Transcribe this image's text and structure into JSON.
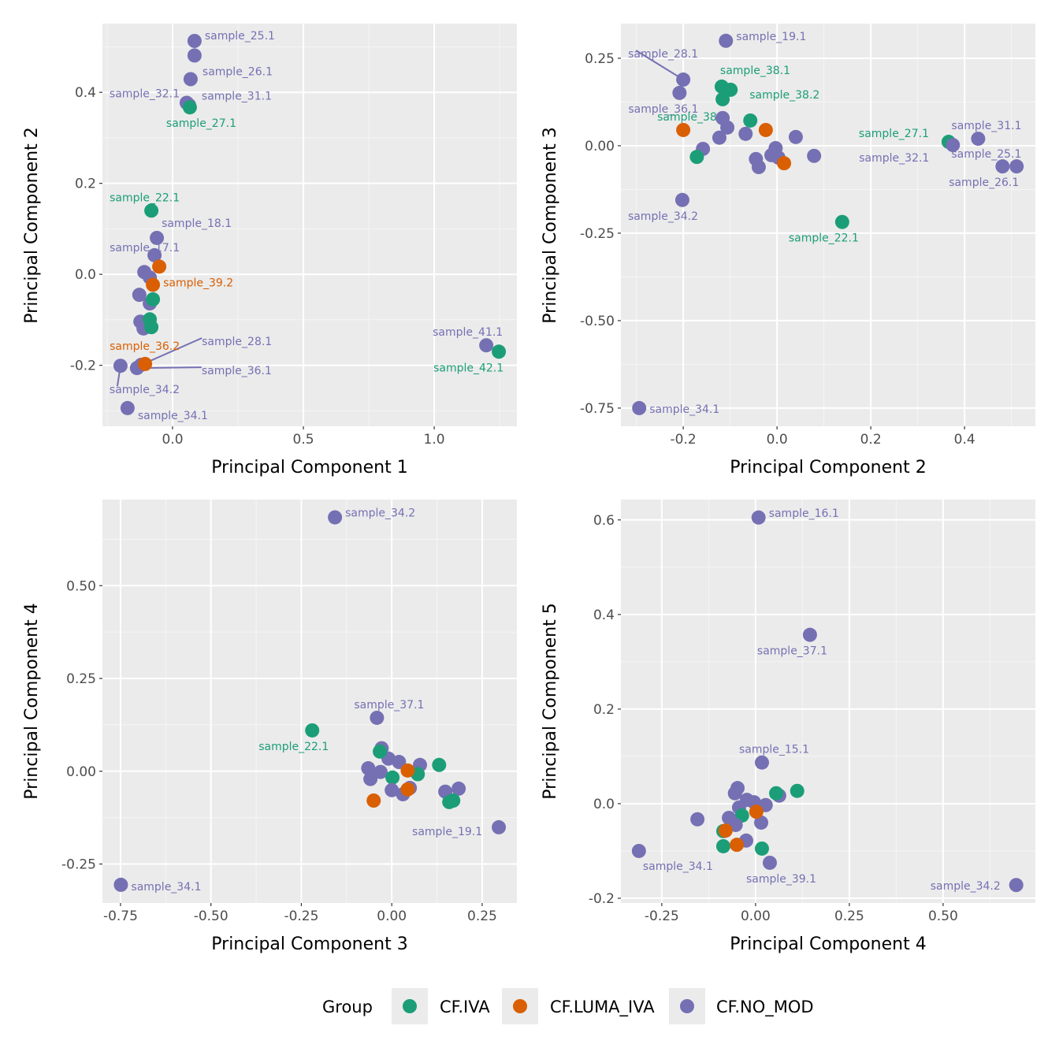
{
  "legend": {
    "title": "Group",
    "items": [
      {
        "label": "CF.IVA",
        "color": "#1B9E77"
      },
      {
        "label": "CF.LUMA_IVA",
        "color": "#D95F02"
      },
      {
        "label": "CF.NO_MOD",
        "color": "#7570B3"
      }
    ],
    "position": "bottom"
  },
  "chart_data": [
    {
      "type": "scatter",
      "xlabel": "Principal Component 1",
      "ylabel": "Principal Component 2",
      "xlim": [
        -0.268,
        1.316
      ],
      "ylim": [
        -0.334,
        0.551
      ],
      "xticks": [
        0,
        0.5,
        1.0
      ],
      "xtick_labels": [
        "0.0",
        "0.5",
        "1.0"
      ],
      "yticks": [
        -0.2,
        0,
        0.2,
        0.4
      ],
      "ytick_labels": [
        "-0.2",
        "0.0",
        "0.2",
        "0.4"
      ],
      "grid": true,
      "points": [
        [
          0.084,
          0.513,
          "CF.NO_MOD",
          "sample_25.1"
        ],
        [
          0.084,
          0.481,
          "CF.NO_MOD",
          ""
        ],
        [
          0.069,
          0.429,
          "CF.NO_MOD",
          "sample_26.1"
        ],
        [
          0.054,
          0.377,
          "CF.NO_MOD",
          "sample_32.1"
        ],
        [
          0.063,
          0.372,
          "CF.NO_MOD",
          "sample_31.1"
        ],
        [
          0.066,
          0.367,
          "CF.IVA",
          "sample_27.1"
        ],
        [
          -0.081,
          0.14,
          "CF.IVA",
          "sample_22.1"
        ],
        [
          -0.06,
          0.08,
          "CF.NO_MOD",
          "sample_18.1"
        ],
        [
          -0.069,
          0.042,
          "CF.NO_MOD",
          "sample_17.1"
        ],
        [
          -0.108,
          0.005,
          "CF.NO_MOD",
          ""
        ],
        [
          -0.087,
          -0.007,
          "CF.NO_MOD",
          ""
        ],
        [
          -0.051,
          0.017,
          "CF.LUMA_IVA",
          ""
        ],
        [
          -0.075,
          -0.023,
          "CF.LUMA_IVA",
          "sample_39.2"
        ],
        [
          -0.127,
          -0.045,
          "CF.NO_MOD",
          ""
        ],
        [
          -0.087,
          -0.064,
          "CF.NO_MOD",
          ""
        ],
        [
          -0.075,
          -0.055,
          "CF.IVA",
          ""
        ],
        [
          -0.123,
          -0.104,
          "CF.NO_MOD",
          ""
        ],
        [
          -0.111,
          -0.119,
          "CF.NO_MOD",
          ""
        ],
        [
          -0.087,
          -0.099,
          "CF.IVA",
          ""
        ],
        [
          -0.081,
          -0.116,
          "CF.IVA",
          ""
        ],
        [
          -0.136,
          -0.206,
          "CF.NO_MOD",
          "sample_36.1"
        ],
        [
          -0.12,
          -0.199,
          "CF.NO_MOD",
          "sample_28.1"
        ],
        [
          -0.105,
          -0.197,
          "CF.LUMA_IVA",
          "sample_36.2"
        ],
        [
          -0.199,
          -0.201,
          "CF.NO_MOD",
          "sample_34.2"
        ],
        [
          -0.172,
          -0.294,
          "CF.NO_MOD",
          "sample_34.1"
        ],
        [
          1.199,
          -0.156,
          "CF.NO_MOD",
          "sample_41.1"
        ],
        [
          1.247,
          -0.17,
          "CF.IVA",
          "sample_42.1"
        ]
      ]
    },
    {
      "type": "scatter",
      "xlabel": "Principal Component 2",
      "ylabel": "Principal Component 3",
      "xlim": [
        -0.333,
        0.551
      ],
      "ylim": [
        -0.802,
        0.349
      ],
      "xticks": [
        -0.2,
        0,
        0.2,
        0.4
      ],
      "xtick_labels": [
        "-0.2",
        "0.0",
        "0.2",
        "0.4"
      ],
      "yticks": [
        -0.75,
        -0.5,
        -0.25,
        0,
        0.25
      ],
      "ytick_labels": [
        "-0.75",
        "-0.50",
        "-0.25",
        "0.00",
        "0.25"
      ],
      "grid": true,
      "points": [
        [
          -0.109,
          0.3,
          "CF.NO_MOD",
          "sample_19.1"
        ],
        [
          -0.2,
          0.189,
          "CF.NO_MOD",
          "sample_28.1"
        ],
        [
          -0.208,
          0.151,
          "CF.NO_MOD",
          "sample_36.1"
        ],
        [
          -0.116,
          0.079,
          "CF.NO_MOD",
          ""
        ],
        [
          -0.106,
          0.052,
          "CF.NO_MOD",
          ""
        ],
        [
          -0.123,
          0.023,
          "CF.NO_MOD",
          ""
        ],
        [
          -0.158,
          -0.009,
          "CF.NO_MOD",
          ""
        ],
        [
          -0.118,
          0.169,
          "CF.IVA",
          "sample_38.1"
        ],
        [
          -0.099,
          0.16,
          "CF.IVA",
          "sample_38.2"
        ],
        [
          -0.116,
          0.133,
          "CF.IVA",
          "sample_38.3"
        ],
        [
          -0.171,
          -0.032,
          "CF.IVA",
          ""
        ],
        [
          -0.2,
          0.045,
          "CF.LUMA_IVA",
          ""
        ],
        [
          -0.057,
          0.072,
          "CF.IVA",
          ""
        ],
        [
          -0.067,
          0.034,
          "CF.NO_MOD",
          ""
        ],
        [
          -0.024,
          0.045,
          "CF.LUMA_IVA",
          ""
        ],
        [
          -0.003,
          -0.007,
          "CF.NO_MOD",
          ""
        ],
        [
          -0.012,
          -0.027,
          "CF.NO_MOD",
          ""
        ],
        [
          0.003,
          -0.034,
          "CF.NO_MOD",
          ""
        ],
        [
          -0.045,
          -0.038,
          "CF.NO_MOD",
          ""
        ],
        [
          -0.039,
          -0.061,
          "CF.NO_MOD",
          ""
        ],
        [
          0.015,
          -0.05,
          "CF.LUMA_IVA",
          ""
        ],
        [
          0.04,
          0.025,
          "CF.NO_MOD",
          ""
        ],
        [
          0.079,
          -0.029,
          "CF.NO_MOD",
          ""
        ],
        [
          -0.202,
          -0.155,
          "CF.NO_MOD",
          "sample_34.2"
        ],
        [
          0.139,
          -0.218,
          "CF.IVA",
          "sample_22.1"
        ],
        [
          0.366,
          0.011,
          "CF.IVA",
          "sample_27.1"
        ],
        [
          0.375,
          0.002,
          "CF.NO_MOD",
          "sample_32.1"
        ],
        [
          0.429,
          0.02,
          "CF.NO_MOD",
          "sample_31.1"
        ],
        [
          0.481,
          -0.059,
          "CF.NO_MOD",
          "sample_25.1"
        ],
        [
          0.511,
          -0.059,
          "CF.NO_MOD",
          "sample_26.1"
        ],
        [
          -0.294,
          -0.75,
          "CF.NO_MOD",
          "sample_34.1"
        ]
      ]
    },
    {
      "type": "scatter",
      "xlabel": "Principal Component 3",
      "ylabel": "Principal Component 4",
      "xlim": [
        -0.8,
        0.346
      ],
      "ylim": [
        -0.355,
        0.732
      ],
      "xticks": [
        -0.75,
        -0.5,
        -0.25,
        0,
        0.25
      ],
      "xtick_labels": [
        "-0.75",
        "-0.50",
        "-0.25",
        "0.00",
        "0.25"
      ],
      "yticks": [
        -0.25,
        0,
        0.25,
        0.5
      ],
      "ytick_labels": [
        "-0.25",
        "0.00",
        "0.25",
        "0.50"
      ],
      "grid": true,
      "points": [
        [
          -0.157,
          0.684,
          "CF.NO_MOD",
          "sample_34.2"
        ],
        [
          -0.041,
          0.144,
          "CF.NO_MOD",
          "sample_37.1"
        ],
        [
          -0.22,
          0.11,
          "CF.IVA",
          "sample_22.1"
        ],
        [
          -0.028,
          0.062,
          "CF.NO_MOD",
          ""
        ],
        [
          -0.065,
          0.008,
          "CF.NO_MOD",
          ""
        ],
        [
          -0.059,
          -0.021,
          "CF.NO_MOD",
          ""
        ],
        [
          -0.031,
          -0.002,
          "CF.NO_MOD",
          ""
        ],
        [
          -0.009,
          0.034,
          "CF.NO_MOD",
          ""
        ],
        [
          0.02,
          0.025,
          "CF.NO_MOD",
          ""
        ],
        [
          0.078,
          0.017,
          "CF.NO_MOD",
          ""
        ],
        [
          0.072,
          -0.008,
          "CF.IVA",
          ""
        ],
        [
          0.002,
          -0.017,
          "CF.IVA",
          ""
        ],
        [
          0.0,
          -0.051,
          "CF.NO_MOD",
          ""
        ],
        [
          0.031,
          -0.062,
          "CF.NO_MOD",
          ""
        ],
        [
          0.05,
          -0.045,
          "CF.NO_MOD",
          ""
        ],
        [
          -0.033,
          0.053,
          "CF.IVA",
          ""
        ],
        [
          0.131,
          0.017,
          "CF.IVA",
          ""
        ],
        [
          0.044,
          0.002,
          "CF.LUMA_IVA",
          ""
        ],
        [
          0.044,
          -0.049,
          "CF.LUMA_IVA",
          ""
        ],
        [
          -0.05,
          -0.079,
          "CF.LUMA_IVA",
          ""
        ],
        [
          0.148,
          -0.055,
          "CF.NO_MOD",
          ""
        ],
        [
          0.185,
          -0.047,
          "CF.NO_MOD",
          ""
        ],
        [
          0.159,
          -0.083,
          "CF.IVA",
          ""
        ],
        [
          0.17,
          -0.079,
          "CF.IVA",
          ""
        ],
        [
          0.296,
          -0.151,
          "CF.NO_MOD",
          "sample_19.1"
        ],
        [
          -0.749,
          -0.306,
          "CF.NO_MOD",
          "sample_34.1"
        ]
      ]
    },
    {
      "type": "scatter",
      "xlabel": "Principal Component 4",
      "ylabel": "Principal Component 5",
      "xlim": [
        -0.359,
        0.746
      ],
      "ylim": [
        -0.21,
        0.643
      ],
      "xticks": [
        -0.25,
        0,
        0.25,
        0.5
      ],
      "xtick_labels": [
        "-0.25",
        "0.00",
        "0.25",
        "0.50"
      ],
      "yticks": [
        -0.2,
        0,
        0.2,
        0.4,
        0.6
      ],
      "ytick_labels": [
        "-0.2",
        "0.0",
        "0.2",
        "0.4",
        "0.6"
      ],
      "grid": true,
      "points": [
        [
          0.008,
          0.605,
          "CF.NO_MOD",
          "sample_16.1"
        ],
        [
          0.145,
          0.357,
          "CF.NO_MOD",
          "sample_37.1"
        ],
        [
          0.017,
          0.087,
          "CF.NO_MOD",
          "sample_15.1"
        ],
        [
          0.063,
          0.017,
          "CF.NO_MOD",
          ""
        ],
        [
          0.055,
          0.022,
          "CF.IVA",
          ""
        ],
        [
          0.111,
          0.027,
          "CF.IVA",
          ""
        ],
        [
          -0.048,
          0.033,
          "CF.NO_MOD",
          ""
        ],
        [
          -0.055,
          0.022,
          "CF.NO_MOD",
          ""
        ],
        [
          -0.023,
          0.008,
          "CF.NO_MOD",
          ""
        ],
        [
          -0.004,
          0.003,
          "CF.NO_MOD",
          ""
        ],
        [
          0.027,
          -0.003,
          "CF.NO_MOD",
          ""
        ],
        [
          -0.044,
          -0.008,
          "CF.NO_MOD",
          ""
        ],
        [
          -0.036,
          -0.025,
          "CF.IVA",
          ""
        ],
        [
          -0.071,
          -0.03,
          "CF.NO_MOD",
          ""
        ],
        [
          0.015,
          -0.04,
          "CF.NO_MOD",
          ""
        ],
        [
          -0.053,
          -0.045,
          "CF.NO_MOD",
          ""
        ],
        [
          0.002,
          -0.017,
          "CF.LUMA_IVA",
          ""
        ],
        [
          -0.025,
          -0.078,
          "CF.NO_MOD",
          ""
        ],
        [
          -0.086,
          -0.058,
          "CF.IVA",
          ""
        ],
        [
          -0.08,
          -0.057,
          "CF.LUMA_IVA",
          ""
        ],
        [
          -0.086,
          -0.09,
          "CF.IVA",
          ""
        ],
        [
          -0.05,
          -0.087,
          "CF.LUMA_IVA",
          ""
        ],
        [
          0.017,
          -0.095,
          "CF.IVA",
          ""
        ],
        [
          0.038,
          -0.125,
          "CF.NO_MOD",
          "sample_39.1"
        ],
        [
          -0.155,
          -0.033,
          "CF.NO_MOD",
          ""
        ],
        [
          -0.311,
          -0.1,
          "CF.NO_MOD",
          "sample_34.1"
        ],
        [
          0.695,
          -0.172,
          "CF.NO_MOD",
          "sample_34.2"
        ]
      ]
    }
  ]
}
